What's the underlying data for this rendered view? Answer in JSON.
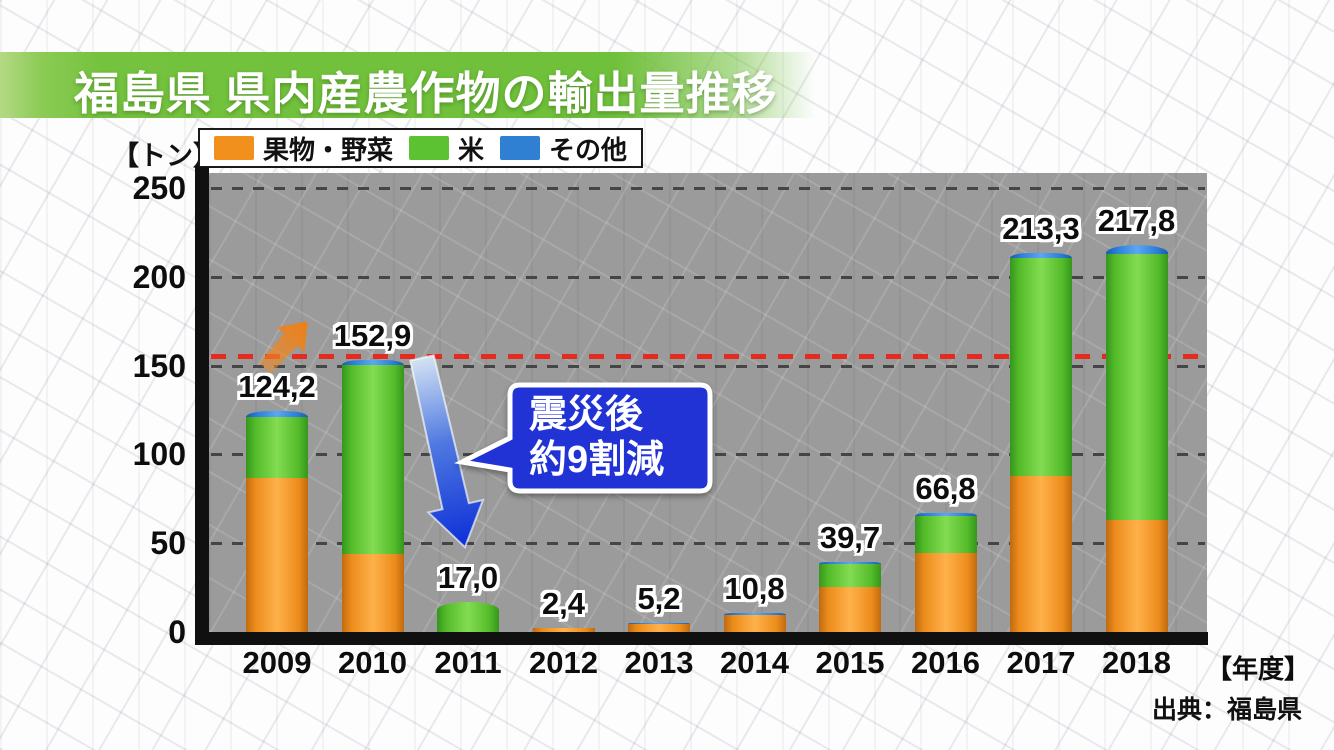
{
  "title": "福島県 県内産農作物の輸出量推移",
  "unit_label": "【トン】",
  "x_axis_suffix": "【年度】",
  "source": "出典：福島県",
  "annotation": {
    "line1": "震災後",
    "line2": "約9割減"
  },
  "legend": [
    {
      "label": "果物・野菜",
      "key": "fruits-vegetables",
      "color": "#F2901E"
    },
    {
      "label": "米",
      "key": "rice",
      "color": "#5CC231"
    },
    {
      "label": "その他",
      "key": "other",
      "color": "#2F80D2"
    }
  ],
  "colors": {
    "banner_green": "#74C23E",
    "plot_background": "#9B9B9B",
    "reference_red": "#E32B20",
    "annotation_blue": "#2233D6"
  },
  "chart_data": {
    "type": "bar",
    "stacked": true,
    "title": "福島県 県内産農作物の輸出量推移",
    "ylabel": "トン",
    "xlabel": "年度",
    "ylim": [
      0,
      250
    ],
    "y_ticks": [
      0,
      50,
      100,
      150,
      200,
      250
    ],
    "grid": true,
    "legend_position": "top-left",
    "categories": [
      "2009",
      "2010",
      "2011",
      "2012",
      "2013",
      "2014",
      "2015",
      "2016",
      "2017",
      "2018"
    ],
    "totals": [
      124.2,
      152.9,
      17.0,
      2.4,
      5.2,
      10.8,
      39.7,
      66.8,
      213.3,
      217.8
    ],
    "total_labels": [
      "124,2",
      "152,9",
      "17,0",
      "2,4",
      "5,2",
      "10,8",
      "39,7",
      "66,8",
      "213,3",
      "217,8"
    ],
    "series": [
      {
        "name": "果物・野菜",
        "key": "fruits-vegetables",
        "color": "#F2901E",
        "values": [
          86.5,
          44.0,
          0.0,
          2.0,
          4.7,
          9.8,
          25.3,
          44.4,
          87.6,
          63.0
        ]
      },
      {
        "name": "米",
        "key": "rice",
        "color": "#5CC231",
        "values": [
          34.8,
          106.4,
          17.0,
          0.0,
          0.0,
          0.0,
          13.0,
          20.9,
          123.2,
          149.8
        ]
      },
      {
        "name": "その他",
        "key": "other",
        "color": "#2F80D2",
        "values": [
          2.9,
          2.5,
          0.0,
          0.4,
          0.5,
          1.0,
          1.4,
          1.5,
          2.5,
          5.0
        ]
      }
    ],
    "reference_line": {
      "value": 155,
      "style": "dashed",
      "color": "#E32B20"
    },
    "annotation_text": "震災後 約9割減"
  }
}
